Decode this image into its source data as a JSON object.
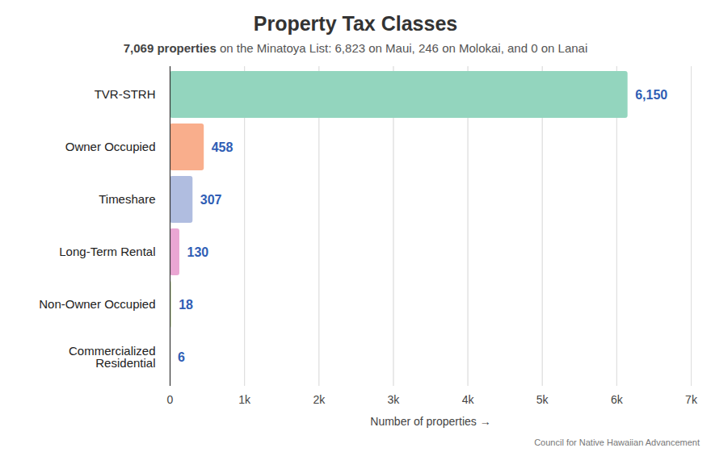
{
  "chart_data": {
    "type": "bar",
    "orientation": "horizontal",
    "title": "Property Tax Classes",
    "subtitle": "7,069 properties on the Minatoya List: 6,823 on Maui, 246 on Molokai, and 0 on Lanai",
    "source": "Council for Native Hawaiian Advancement",
    "x_label": "Number of properties",
    "categories": [
      "TVR-STRH",
      "Owner Occupied",
      "Timeshare",
      "Long-Term Rental",
      "Non-Owner Occupied",
      "Commercialized Residential"
    ],
    "values": [
      6150,
      458,
      307,
      130,
      18,
      6
    ],
    "value_labels": [
      "6,150",
      "458",
      "307",
      "130",
      "18",
      "6"
    ],
    "colors": [
      "#93d5be",
      "#f9ae8c",
      "#b0bde0",
      "#eaa6d3",
      "#c5e396",
      "#f4d77a"
    ],
    "xlim": [
      0,
      7000
    ],
    "xticks": [
      0,
      {
        "value": 1000,
        "label": "1k"
      },
      {
        "value": 2000,
        "label": "2k"
      },
      {
        "value": 3000,
        "label": "3k"
      },
      {
        "value": 4000,
        "label": "4k"
      },
      {
        "value": 5000,
        "label": "5k"
      },
      {
        "value": 6000,
        "label": "6k"
      },
      {
        "value": 7000,
        "label": "7k"
      }
    ],
    "grid": true,
    "data_labels": true
  }
}
